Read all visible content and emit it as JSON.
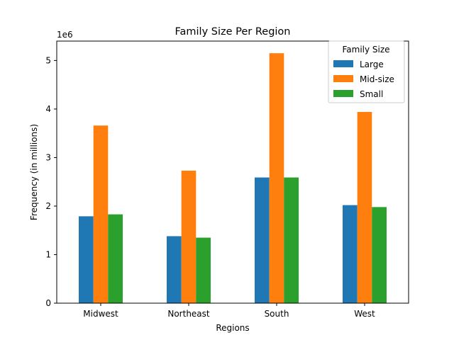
{
  "chart_data": {
    "type": "bar",
    "title": "Family Size Per Region",
    "xlabel": "Regions",
    "ylabel": "Frequency (in millions)",
    "y_scale_label": "1e6",
    "categories": [
      "Midwest",
      "Northeast",
      "South",
      "West"
    ],
    "series": [
      {
        "name": "Large",
        "color": "#1f77b4",
        "values": [
          1790000,
          1380000,
          2590000,
          2020000
        ]
      },
      {
        "name": "Mid-size",
        "color": "#ff7f0e",
        "values": [
          3660000,
          2730000,
          5150000,
          3940000
        ]
      },
      {
        "name": "Small",
        "color": "#2ca02c",
        "values": [
          1830000,
          1350000,
          2590000,
          1980000
        ]
      }
    ],
    "ylim": [
      0,
      5400000
    ],
    "yticks": [
      0,
      1000000,
      2000000,
      3000000,
      4000000,
      5000000
    ],
    "ytick_labels": [
      "0",
      "1",
      "2",
      "3",
      "4",
      "5"
    ],
    "legend": {
      "title": "Family Size",
      "placement": "top-right"
    },
    "grid": false
  }
}
